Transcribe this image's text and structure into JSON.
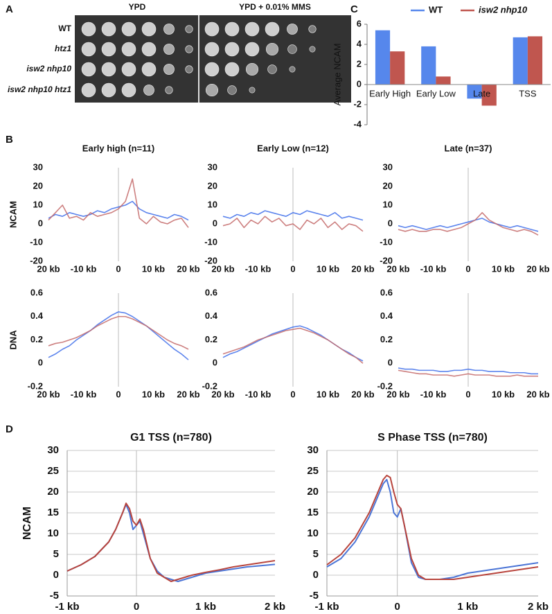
{
  "panel_labels": [
    "A",
    "B",
    "C",
    "D"
  ],
  "panel_a": {
    "columns": [
      "YPD",
      "YPD + 0.01% MMS"
    ],
    "rows": [
      "WT",
      "htz1",
      "isw2 nhp10",
      "isw2 nhp10 htz1"
    ]
  },
  "chart_data": [
    {
      "type": "bar",
      "ylabel": "Average NCAM",
      "categories": [
        "Early High",
        "Early Low",
        "Late",
        "TSS"
      ],
      "series": [
        {
          "name": "WT",
          "color": "#5687ec",
          "values": [
            5.4,
            3.8,
            -1.4,
            4.7
          ]
        },
        {
          "name": "isw2 nhp10",
          "color": "#c0564f",
          "values": [
            3.3,
            0.8,
            -2.1,
            4.8
          ]
        }
      ],
      "ylim": [
        -4,
        6
      ],
      "yticks": [
        -4,
        -2,
        0,
        2,
        4,
        6
      ],
      "legend": "top"
    },
    {
      "type": "line",
      "title": "Early high (n=11)",
      "ylabel": "NCAM",
      "x": [
        -20,
        -18,
        -16,
        -14,
        -12,
        -10,
        -8,
        -6,
        -4,
        -2,
        0,
        2,
        4,
        6,
        8,
        10,
        12,
        14,
        16,
        18,
        20
      ],
      "series": [
        {
          "color": "#3f6fea",
          "values": [
            3,
            5,
            4,
            6,
            5,
            4,
            5,
            7,
            6,
            8,
            9,
            10,
            12,
            8,
            6,
            5,
            4,
            3,
            5,
            4,
            2
          ]
        },
        {
          "color": "#c46a6a",
          "values": [
            2,
            6,
            10,
            3,
            4,
            2,
            6,
            4,
            5,
            6,
            8,
            12,
            24,
            3,
            0,
            4,
            1,
            0,
            2,
            3,
            -2
          ]
        }
      ],
      "xlim": [
        -20,
        20
      ],
      "xticks": [
        {
          "value": -20,
          "label": "20 kb"
        },
        {
          "value": -10,
          "label": "-10 kb"
        },
        0,
        {
          "value": 10,
          "label": "10 kb"
        },
        {
          "value": 20,
          "label": "20 kb"
        }
      ],
      "ylim": [
        -20,
        30
      ],
      "yticks": [
        -20,
        -10,
        0,
        10,
        20,
        30
      ],
      "grid": false
    },
    {
      "type": "line",
      "title": "Early Low (n=12)",
      "x": [
        -20,
        -18,
        -16,
        -14,
        -12,
        -10,
        -8,
        -6,
        -4,
        -2,
        0,
        2,
        4,
        6,
        8,
        10,
        12,
        14,
        16,
        18,
        20
      ],
      "series": [
        {
          "color": "#3f6fea",
          "values": [
            4,
            3,
            5,
            4,
            6,
            5,
            7,
            6,
            5,
            4,
            6,
            5,
            7,
            6,
            5,
            4,
            6,
            3,
            4,
            3,
            2
          ]
        },
        {
          "color": "#c46a6a",
          "values": [
            -1,
            0,
            3,
            -2,
            2,
            0,
            4,
            1,
            3,
            -1,
            0,
            -3,
            2,
            0,
            3,
            -2,
            1,
            -3,
            0,
            -1,
            -4
          ]
        }
      ],
      "xlim": [
        -20,
        20
      ],
      "xticks": [
        {
          "value": -20,
          "label": "20 kb"
        },
        {
          "value": -10,
          "label": "-10 kb"
        },
        0,
        {
          "value": 10,
          "label": "10 kb"
        },
        {
          "value": 20,
          "label": "20 kb"
        }
      ],
      "ylim": [
        -20,
        30
      ],
      "yticks": [
        -20,
        -10,
        0,
        10,
        20,
        30
      ],
      "grid": false
    },
    {
      "type": "line",
      "title": "Late (n=37)",
      "x": [
        -20,
        -18,
        -16,
        -14,
        -12,
        -10,
        -8,
        -6,
        -4,
        -2,
        0,
        2,
        4,
        6,
        8,
        10,
        12,
        14,
        16,
        18,
        20
      ],
      "series": [
        {
          "color": "#3f6fea",
          "values": [
            -1,
            -2,
            -1,
            -2,
            -3,
            -2,
            -1,
            -2,
            -1,
            0,
            1,
            2,
            3,
            1,
            0,
            -1,
            -2,
            -1,
            -2,
            -3,
            -4
          ]
        },
        {
          "color": "#c46a6a",
          "values": [
            -3,
            -4,
            -3,
            -4,
            -4,
            -3,
            -3,
            -4,
            -3,
            -2,
            0,
            2,
            6,
            2,
            0,
            -2,
            -3,
            -4,
            -3,
            -4,
            -6
          ]
        }
      ],
      "xlim": [
        -20,
        20
      ],
      "xticks": [
        {
          "value": -20,
          "label": "20 kb"
        },
        {
          "value": -10,
          "label": "-10 kb"
        },
        0,
        {
          "value": 10,
          "label": "10 kb"
        },
        {
          "value": 20,
          "label": "20 kb"
        }
      ],
      "ylim": [
        -20,
        30
      ],
      "yticks": [
        -20,
        -10,
        0,
        10,
        20,
        30
      ],
      "grid": false
    },
    {
      "type": "line",
      "ylabel": "DNA",
      "x": [
        -20,
        -18,
        -16,
        -14,
        -12,
        -10,
        -8,
        -6,
        -4,
        -2,
        0,
        2,
        4,
        6,
        8,
        10,
        12,
        14,
        16,
        18,
        20
      ],
      "series": [
        {
          "color": "#3f6fea",
          "values": [
            0.05,
            0.08,
            0.12,
            0.15,
            0.2,
            0.24,
            0.28,
            0.33,
            0.37,
            0.41,
            0.44,
            0.43,
            0.4,
            0.36,
            0.32,
            0.27,
            0.22,
            0.17,
            0.12,
            0.08,
            0.03
          ]
        },
        {
          "color": "#c46a6a",
          "values": [
            0.15,
            0.17,
            0.18,
            0.2,
            0.22,
            0.25,
            0.28,
            0.32,
            0.35,
            0.38,
            0.4,
            0.4,
            0.38,
            0.35,
            0.32,
            0.28,
            0.24,
            0.2,
            0.17,
            0.15,
            0.12
          ]
        }
      ],
      "xlim": [
        -20,
        20
      ],
      "xticks": [
        {
          "value": -20,
          "label": "20 kb"
        },
        {
          "value": -10,
          "label": "-10 kb"
        },
        0,
        {
          "value": 10,
          "label": "10 kb"
        },
        {
          "value": 20,
          "label": "20 kb"
        }
      ],
      "ylim": [
        -0.2,
        0.6
      ],
      "yticks": [
        -0.2,
        0,
        0.2,
        0.4,
        0.6
      ],
      "grid": false
    },
    {
      "type": "line",
      "x": [
        -20,
        -18,
        -16,
        -14,
        -12,
        -10,
        -8,
        -6,
        -4,
        -2,
        0,
        2,
        4,
        6,
        8,
        10,
        12,
        14,
        16,
        18,
        20
      ],
      "series": [
        {
          "color": "#3f6fea",
          "values": [
            0.05,
            0.08,
            0.1,
            0.13,
            0.16,
            0.19,
            0.22,
            0.25,
            0.27,
            0.29,
            0.31,
            0.32,
            0.3,
            0.27,
            0.24,
            0.2,
            0.16,
            0.12,
            0.09,
            0.05,
            0.02
          ]
        },
        {
          "color": "#c46a6a",
          "values": [
            0.08,
            0.1,
            0.12,
            0.14,
            0.17,
            0.2,
            0.22,
            0.24,
            0.26,
            0.28,
            0.29,
            0.3,
            0.28,
            0.26,
            0.23,
            0.2,
            0.16,
            0.12,
            0.08,
            0.05,
            0.0
          ]
        }
      ],
      "xlim": [
        -20,
        20
      ],
      "xticks": [
        {
          "value": -20,
          "label": "20 kb"
        },
        {
          "value": -10,
          "label": "-10 kb"
        },
        0,
        {
          "value": 10,
          "label": "10 kb"
        },
        {
          "value": 20,
          "label": "20 kb"
        }
      ],
      "ylim": [
        -0.2,
        0.6
      ],
      "yticks": [
        -0.2,
        0,
        0.2,
        0.4,
        0.6
      ],
      "grid": false
    },
    {
      "type": "line",
      "x": [
        -20,
        -18,
        -16,
        -14,
        -12,
        -10,
        -8,
        -6,
        -4,
        -2,
        0,
        2,
        4,
        6,
        8,
        10,
        12,
        14,
        16,
        18,
        20
      ],
      "series": [
        {
          "color": "#3f6fea",
          "values": [
            -0.04,
            -0.05,
            -0.05,
            -0.06,
            -0.06,
            -0.06,
            -0.07,
            -0.07,
            -0.06,
            -0.06,
            -0.05,
            -0.06,
            -0.06,
            -0.07,
            -0.07,
            -0.07,
            -0.08,
            -0.08,
            -0.08,
            -0.09,
            -0.09
          ]
        },
        {
          "color": "#c46a6a",
          "values": [
            -0.06,
            -0.07,
            -0.08,
            -0.09,
            -0.09,
            -0.1,
            -0.1,
            -0.1,
            -0.11,
            -0.1,
            -0.09,
            -0.1,
            -0.1,
            -0.1,
            -0.11,
            -0.11,
            -0.11,
            -0.1,
            -0.11,
            -0.11,
            -0.11
          ]
        }
      ],
      "xlim": [
        -20,
        20
      ],
      "xticks": [
        {
          "value": -20,
          "label": "20 kb"
        },
        {
          "value": -10,
          "label": "-10 kb"
        },
        0,
        {
          "value": 10,
          "label": "10 kb"
        },
        {
          "value": 20,
          "label": "20 kb"
        }
      ],
      "ylim": [
        -0.2,
        0.6
      ],
      "yticks": [
        -0.2,
        0,
        0.2,
        0.4,
        0.6
      ],
      "grid": false
    },
    {
      "type": "line",
      "title": "G1 TSS (n=780)",
      "ylabel": "NCAM",
      "x": [
        -1,
        -0.8,
        -0.6,
        -0.4,
        -0.3,
        -0.2,
        -0.15,
        -0.1,
        -0.05,
        0,
        0.05,
        0.1,
        0.2,
        0.3,
        0.4,
        0.5,
        0.6,
        0.8,
        1,
        1.2,
        1.4,
        1.6,
        1.8,
        2
      ],
      "series": [
        {
          "color": "#4a74d6",
          "values": [
            1,
            2.5,
            4.5,
            8,
            11,
            15,
            17,
            15,
            11,
            12,
            13,
            10,
            4,
            1,
            -0.5,
            -1,
            -1.5,
            -0.5,
            0.5,
            1,
            1.5,
            2,
            2.3,
            2.6
          ]
        },
        {
          "color": "#b8443c",
          "values": [
            1,
            2.5,
            4.5,
            8,
            11,
            15,
            17.3,
            16,
            13,
            12,
            13.5,
            11,
            4,
            0.5,
            -0.5,
            -1.5,
            -1,
            0,
            0.7,
            1.3,
            2,
            2.5,
            3,
            3.5
          ]
        }
      ],
      "xlim": [
        -1,
        2
      ],
      "xticks": [
        {
          "value": -1,
          "label": "-1 kb"
        },
        0,
        {
          "value": 1,
          "label": "1 kb"
        },
        {
          "value": 2,
          "label": "2 kb"
        }
      ],
      "ylim": [
        -5,
        30
      ],
      "yticks": [
        -5,
        0,
        5,
        10,
        15,
        20,
        25,
        30
      ],
      "grid": true
    },
    {
      "type": "line",
      "title": "S Phase TSS (n=780)",
      "x": [
        -1,
        -0.8,
        -0.6,
        -0.4,
        -0.3,
        -0.2,
        -0.15,
        -0.1,
        -0.05,
        0,
        0.05,
        0.1,
        0.2,
        0.3,
        0.4,
        0.5,
        0.6,
        0.8,
        1,
        1.2,
        1.4,
        1.6,
        1.8,
        2
      ],
      "series": [
        {
          "color": "#4a74d6",
          "values": [
            2,
            4,
            8,
            14,
            18,
            22,
            23,
            20,
            15,
            14,
            16,
            12,
            3,
            -0.5,
            -1,
            -1,
            -1,
            -0.5,
            0.5,
            1,
            1.5,
            2,
            2.5,
            3
          ]
        },
        {
          "color": "#b8443c",
          "values": [
            2.5,
            5,
            9,
            15,
            19,
            23,
            24,
            23.5,
            20,
            17,
            16,
            12,
            4,
            0,
            -1,
            -1,
            -1,
            -1,
            -0.5,
            0,
            0.5,
            1,
            1.5,
            2
          ]
        }
      ],
      "xlim": [
        -1,
        2
      ],
      "xticks": [
        {
          "value": -1,
          "label": "-1 kb"
        },
        0,
        {
          "value": 1,
          "label": "1 kb"
        },
        {
          "value": 2,
          "label": "2 kb"
        }
      ],
      "ylim": [
        -5,
        30
      ],
      "yticks": [
        -5,
        0,
        5,
        10,
        15,
        20,
        25,
        30
      ],
      "grid": true
    }
  ]
}
